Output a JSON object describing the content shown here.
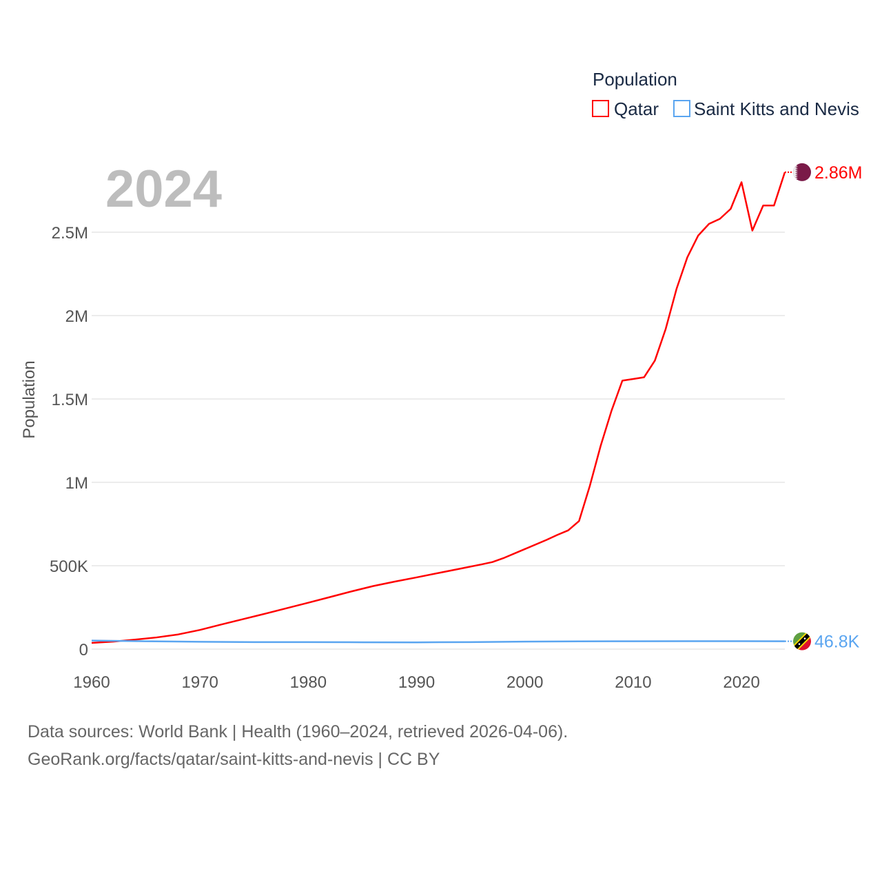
{
  "chart_data": {
    "type": "line",
    "title": "",
    "xlabel": "",
    "ylabel": "Population",
    "xlim": [
      1960,
      2024
    ],
    "ylim": [
      0,
      2900000
    ],
    "grid": true,
    "legend_title": "Population",
    "legend_placement": "top-right",
    "year_label": "2024",
    "x_ticks": [
      1960,
      1970,
      1980,
      1990,
      2000,
      2010,
      2020
    ],
    "x_tick_labels": [
      "1960",
      "1970",
      "1980",
      "1990",
      "2000",
      "2010",
      "2020"
    ],
    "y_ticks": [
      0,
      500000,
      1000000,
      1500000,
      2000000,
      2500000
    ],
    "y_tick_labels": [
      "0",
      "500K",
      "1M",
      "1.5M",
      "2M",
      "2.5M"
    ],
    "series": [
      {
        "name": "Qatar",
        "color": "#ff0000",
        "end_label": "2.86M",
        "x": [
          1960,
          1962,
          1964,
          1966,
          1968,
          1970,
          1972,
          1974,
          1976,
          1978,
          1980,
          1982,
          1984,
          1986,
          1988,
          1990,
          1992,
          1994,
          1996,
          1997,
          1998,
          2000,
          2002,
          2003,
          2004,
          2005,
          2006,
          2007,
          2008,
          2009,
          2010,
          2011,
          2012,
          2013,
          2014,
          2015,
          2016,
          2017,
          2018,
          2019,
          2020,
          2021,
          2022,
          2023,
          2024
        ],
        "values": [
          37000,
          45000,
          57000,
          70000,
          88000,
          115000,
          148000,
          180000,
          212000,
          245000,
          278000,
          312000,
          346000,
          378000,
          405000,
          430000,
          456000,
          482000,
          508000,
          522000,
          545000,
          600000,
          655000,
          685000,
          712000,
          768000,
          980000,
          1220000,
          1430000,
          1610000,
          1620000,
          1630000,
          1730000,
          1920000,
          2160000,
          2350000,
          2480000,
          2550000,
          2580000,
          2640000,
          2800000,
          2510000,
          2660000,
          2660000,
          2860000
        ]
      },
      {
        "name": "Saint Kitts and Nevis",
        "color": "#5aa5f0",
        "end_label": "46.8K",
        "x": [
          1960,
          1965,
          1970,
          1975,
          1980,
          1985,
          1990,
          1995,
          2000,
          2005,
          2010,
          2015,
          2020,
          2024
        ],
        "values": [
          51000,
          47000,
          44000,
          42000,
          42000,
          41000,
          40500,
          42000,
          45000,
          46500,
          47000,
          47500,
          47500,
          46800
        ]
      }
    ]
  },
  "source": {
    "line1": "Data sources: World Bank | Health (1960–2024, retrieved 2026-04-06).",
    "line2": "GeoRank.org/facts/qatar/saint-kitts-and-nevis | CC BY"
  }
}
